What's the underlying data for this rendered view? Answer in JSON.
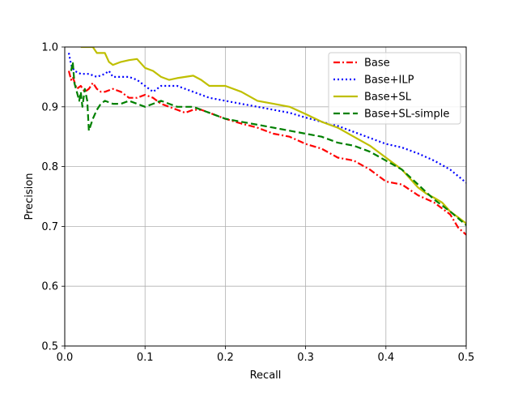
{
  "chart_data": {
    "type": "line",
    "title": "",
    "xlabel": "Recall",
    "ylabel": "Precision",
    "xlim": [
      0.0,
      0.5
    ],
    "ylim": [
      0.5,
      1.0
    ],
    "xticks": [
      "0.0",
      "0.1",
      "0.2",
      "0.3",
      "0.4",
      "0.5"
    ],
    "yticks": [
      "0.5",
      "0.6",
      "0.7",
      "0.8",
      "0.9",
      "1.0"
    ],
    "grid": true,
    "legend_position": "top-right",
    "series": [
      {
        "name": "Base",
        "color": "#ff0000",
        "style": "dashdot",
        "x": [
          0.005,
          0.008,
          0.01,
          0.015,
          0.02,
          0.025,
          0.03,
          0.035,
          0.04,
          0.045,
          0.05,
          0.06,
          0.07,
          0.08,
          0.09,
          0.1,
          0.11,
          0.12,
          0.13,
          0.14,
          0.15,
          0.16,
          0.17,
          0.18,
          0.19,
          0.2,
          0.22,
          0.24,
          0.26,
          0.28,
          0.3,
          0.32,
          0.34,
          0.36,
          0.38,
          0.4,
          0.42,
          0.44,
          0.46,
          0.48,
          0.49,
          0.5
        ],
        "y": [
          0.96,
          0.945,
          0.95,
          0.93,
          0.935,
          0.925,
          0.93,
          0.94,
          0.93,
          0.925,
          0.925,
          0.93,
          0.925,
          0.915,
          0.915,
          0.92,
          0.915,
          0.905,
          0.9,
          0.895,
          0.89,
          0.895,
          0.895,
          0.89,
          0.885,
          0.88,
          0.872,
          0.865,
          0.855,
          0.85,
          0.838,
          0.83,
          0.815,
          0.81,
          0.795,
          0.775,
          0.77,
          0.752,
          0.74,
          0.72,
          0.698,
          0.686
        ]
      },
      {
        "name": "Base+ILP",
        "color": "#0000ff",
        "style": "dotted",
        "x": [
          0.005,
          0.008,
          0.012,
          0.02,
          0.03,
          0.04,
          0.05,
          0.055,
          0.06,
          0.07,
          0.08,
          0.09,
          0.1,
          0.11,
          0.12,
          0.14,
          0.16,
          0.18,
          0.2,
          0.22,
          0.24,
          0.26,
          0.28,
          0.3,
          0.32,
          0.34,
          0.36,
          0.38,
          0.4,
          0.42,
          0.44,
          0.46,
          0.48,
          0.5
        ],
        "y": [
          0.99,
          0.97,
          0.96,
          0.955,
          0.955,
          0.95,
          0.955,
          0.96,
          0.95,
          0.95,
          0.95,
          0.945,
          0.935,
          0.925,
          0.935,
          0.935,
          0.925,
          0.915,
          0.91,
          0.905,
          0.9,
          0.895,
          0.89,
          0.882,
          0.875,
          0.868,
          0.858,
          0.848,
          0.838,
          0.832,
          0.822,
          0.81,
          0.795,
          0.773
        ]
      },
      {
        "name": "Base+SL",
        "color": "#bfbf00",
        "style": "solid",
        "x": [
          0.02,
          0.03,
          0.035,
          0.04,
          0.05,
          0.055,
          0.06,
          0.07,
          0.08,
          0.09,
          0.1,
          0.11,
          0.12,
          0.13,
          0.14,
          0.15,
          0.16,
          0.17,
          0.18,
          0.2,
          0.22,
          0.24,
          0.26,
          0.28,
          0.3,
          0.32,
          0.34,
          0.36,
          0.38,
          0.4,
          0.41,
          0.42,
          0.43,
          0.44,
          0.45,
          0.46,
          0.47,
          0.48,
          0.49,
          0.5
        ],
        "y": [
          1.0,
          1.0,
          1.0,
          0.99,
          0.99,
          0.975,
          0.97,
          0.975,
          0.978,
          0.98,
          0.965,
          0.96,
          0.95,
          0.945,
          0.948,
          0.95,
          0.952,
          0.945,
          0.935,
          0.935,
          0.925,
          0.91,
          0.905,
          0.9,
          0.888,
          0.875,
          0.865,
          0.85,
          0.835,
          0.815,
          0.805,
          0.795,
          0.78,
          0.765,
          0.755,
          0.748,
          0.74,
          0.725,
          0.715,
          0.705
        ]
      },
      {
        "name": "Base+SL-simple",
        "color": "#008000",
        "style": "dashed",
        "x": [
          0.008,
          0.01,
          0.012,
          0.015,
          0.018,
          0.02,
          0.022,
          0.025,
          0.028,
          0.03,
          0.035,
          0.04,
          0.045,
          0.05,
          0.06,
          0.07,
          0.08,
          0.09,
          0.1,
          0.11,
          0.12,
          0.13,
          0.14,
          0.15,
          0.16,
          0.18,
          0.2,
          0.22,
          0.24,
          0.26,
          0.28,
          0.3,
          0.32,
          0.34,
          0.36,
          0.38,
          0.4,
          0.42,
          0.44,
          0.46,
          0.48,
          0.5
        ],
        "y": [
          0.96,
          0.975,
          0.94,
          0.925,
          0.91,
          0.925,
          0.9,
          0.93,
          0.91,
          0.86,
          0.88,
          0.895,
          0.905,
          0.91,
          0.905,
          0.905,
          0.91,
          0.905,
          0.9,
          0.905,
          0.91,
          0.905,
          0.9,
          0.9,
          0.9,
          0.89,
          0.88,
          0.875,
          0.87,
          0.865,
          0.86,
          0.855,
          0.85,
          0.84,
          0.835,
          0.825,
          0.81,
          0.795,
          0.77,
          0.745,
          0.725,
          0.702
        ]
      }
    ]
  }
}
